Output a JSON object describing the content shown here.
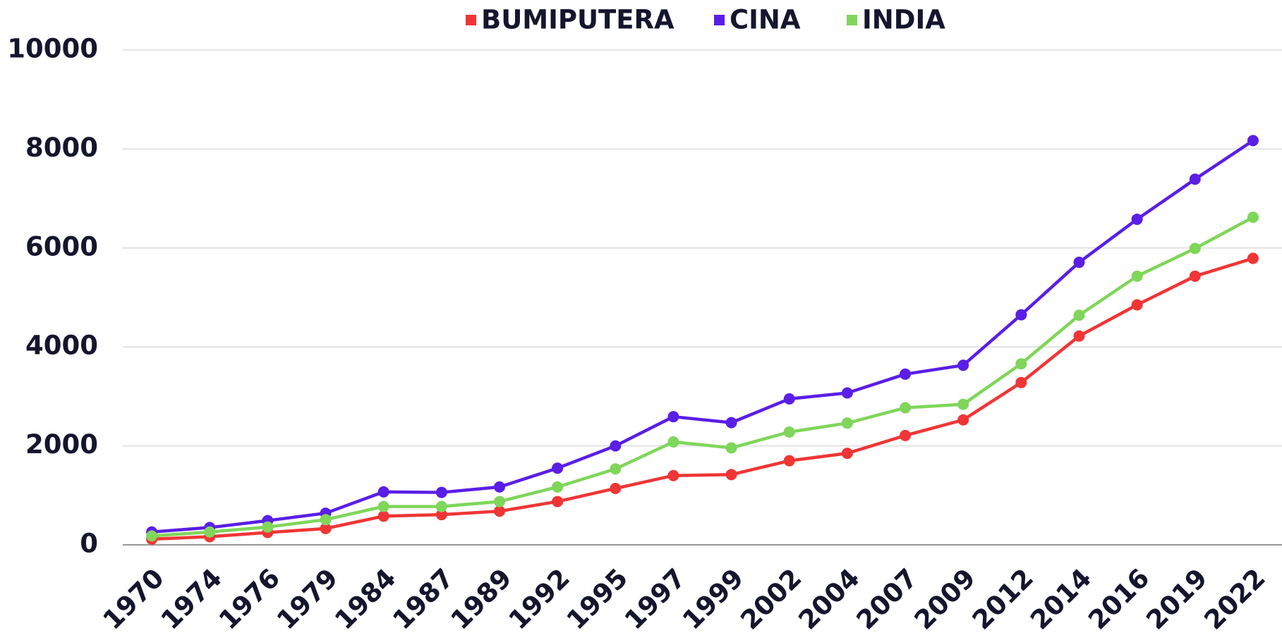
{
  "chart_data": {
    "type": "line",
    "categories": [
      "1970",
      "1974",
      "1976",
      "1979",
      "1984",
      "1987",
      "1989",
      "1992",
      "1995",
      "1997",
      "1999",
      "2002",
      "2004",
      "2007",
      "2009",
      "2012",
      "2014",
      "2016",
      "2019",
      "2022"
    ],
    "series": [
      {
        "name": "BUMIPUTERA",
        "color": "#f03535",
        "values": [
          115,
          165,
          250,
          330,
          580,
          610,
          680,
          875,
          1140,
          1400,
          1420,
          1700,
          1850,
          2210,
          2525,
          3280,
          4220,
          4850,
          5430,
          5790
        ]
      },
      {
        "name": "CINA",
        "color": "#5a1ee6",
        "values": [
          260,
          350,
          490,
          640,
          1070,
          1060,
          1170,
          1550,
          2000,
          2590,
          2470,
          2950,
          3070,
          3450,
          3630,
          4650,
          5710,
          6580,
          7390,
          8170
        ]
      },
      {
        "name": "INDIA",
        "color": "#7fd65a",
        "values": [
          180,
          260,
          360,
          510,
          775,
          775,
          875,
          1170,
          1535,
          2080,
          1960,
          2280,
          2460,
          2770,
          2840,
          3660,
          4640,
          5430,
          5990,
          6620
        ]
      }
    ],
    "ylim": [
      0,
      10000
    ],
    "yticks": [
      0,
      2000,
      4000,
      6000,
      8000,
      10000
    ],
    "grid": true,
    "legend": "top"
  }
}
